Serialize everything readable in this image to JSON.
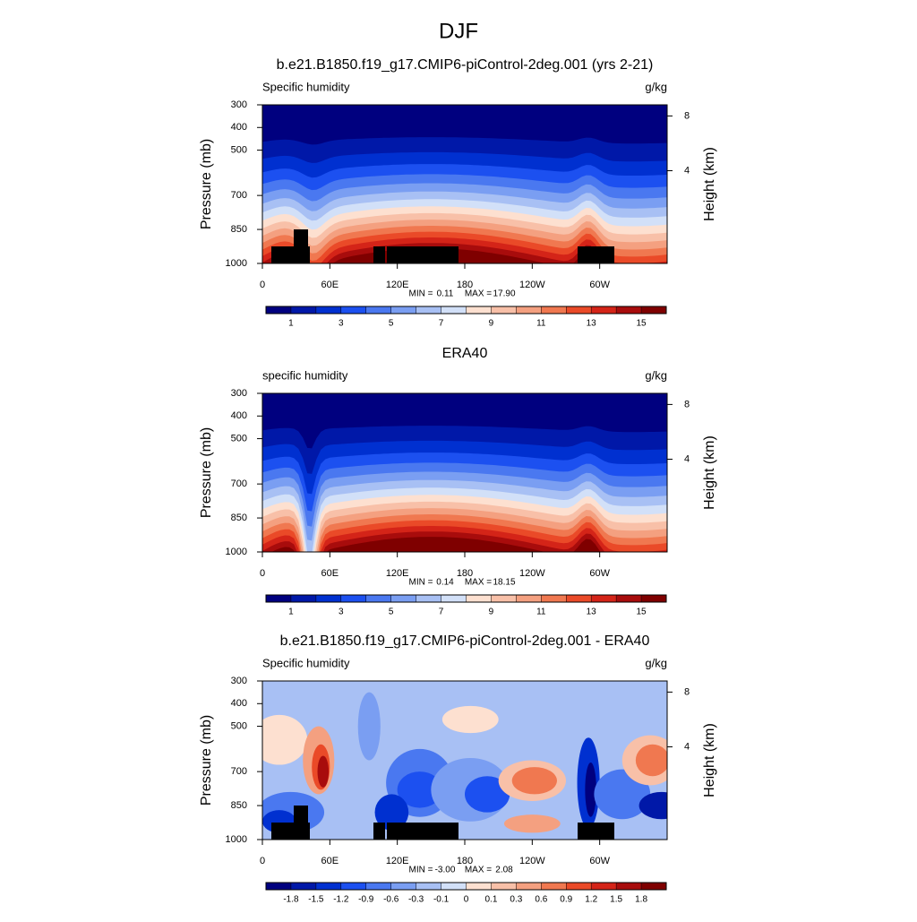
{
  "title": "DJF",
  "chart_data": [
    {
      "type": "contour",
      "title": "b.e21.B1850.f19_g17.CMIP6-piControl-2deg.001 (yrs 2-21)",
      "subtitle_left": "Specific humidity",
      "subtitle_right": "g/kg",
      "ylabel": "Pressure (mb)",
      "y2label": "Height (km)",
      "xlim": [
        0,
        360
      ],
      "xticks": [
        0,
        {
          "value": 60,
          "label": "60E"
        },
        {
          "value": 120,
          "label": "120E"
        },
        180,
        {
          "value": 240,
          "label": "120W"
        },
        {
          "value": 300,
          "label": "60W"
        }
      ],
      "ylim": [
        1000,
        300
      ],
      "yticks": [
        300,
        400,
        500,
        700,
        850,
        1000
      ],
      "y2ticks": [
        8,
        4
      ],
      "stats": [
        {
          "name": "MIN =",
          "value": 0.11,
          "label": "0.11"
        },
        {
          "name": "MAX =",
          "value": 17.9,
          "label": "17.90"
        }
      ],
      "colorbar": {
        "colors": [
          "#00007f",
          "#0018a8",
          "#0030d0",
          "#1c50f0",
          "#4a78f0",
          "#7a9ef2",
          "#a8c0f4",
          "#d2e0f8",
          "#fde0d0",
          "#f8c0a8",
          "#f4a080",
          "#f07850",
          "#ea4a28",
          "#d42418",
          "#a80c0c",
          "#7f0000"
        ],
        "levels": [
          1,
          2,
          3,
          4,
          5,
          6,
          7,
          8,
          9,
          10,
          11,
          12,
          13,
          14,
          15
        ],
        "label_step": 2
      }
    },
    {
      "type": "contour",
      "title": "ERA40",
      "subtitle_left": "specific humidity",
      "subtitle_right": "g/kg",
      "ylabel": "Pressure (mb)",
      "y2label": "Height (km)",
      "xlim": [
        0,
        360
      ],
      "xticks": [
        0,
        {
          "value": 60,
          "label": "60E"
        },
        {
          "value": 120,
          "label": "120E"
        },
        180,
        {
          "value": 240,
          "label": "120W"
        },
        {
          "value": 300,
          "label": "60W"
        }
      ],
      "ylim": [
        1000,
        300
      ],
      "yticks": [
        300,
        400,
        500,
        700,
        850,
        1000
      ],
      "y2ticks": [
        8,
        4
      ],
      "stats": [
        {
          "name": "MIN =",
          "value": 0.14,
          "label": "0.14"
        },
        {
          "name": "MAX =",
          "value": 18.15,
          "label": "18.15"
        }
      ],
      "colorbar": {
        "colors": [
          "#00007f",
          "#0018a8",
          "#0030d0",
          "#1c50f0",
          "#4a78f0",
          "#7a9ef2",
          "#a8c0f4",
          "#d2e0f8",
          "#fde0d0",
          "#f8c0a8",
          "#f4a080",
          "#f07850",
          "#ea4a28",
          "#d42418",
          "#a80c0c",
          "#7f0000"
        ],
        "levels": [
          1,
          2,
          3,
          4,
          5,
          6,
          7,
          8,
          9,
          10,
          11,
          12,
          13,
          14,
          15
        ],
        "label_step": 2
      }
    },
    {
      "type": "contour",
      "title": "b.e21.B1850.f19_g17.CMIP6-piControl-2deg.001 - ERA40",
      "subtitle_left": "Specific humidity",
      "subtitle_right": "g/kg",
      "ylabel": "Pressure (mb)",
      "y2label": "Height (km)",
      "xlim": [
        0,
        360
      ],
      "xticks": [
        0,
        {
          "value": 60,
          "label": "60E"
        },
        {
          "value": 120,
          "label": "120E"
        },
        180,
        {
          "value": 240,
          "label": "120W"
        },
        {
          "value": 300,
          "label": "60W"
        }
      ],
      "ylim": [
        1000,
        300
      ],
      "yticks": [
        300,
        400,
        500,
        700,
        850,
        1000
      ],
      "y2ticks": [
        8,
        4
      ],
      "stats": [
        {
          "name": "MIN =",
          "value": -3.0,
          "label": "-3.00"
        },
        {
          "name": "MAX =",
          "value": 2.08,
          "label": "2.08"
        }
      ],
      "colorbar": {
        "colors": [
          "#00007f",
          "#0018a8",
          "#0030d0",
          "#1c50f0",
          "#4a78f0",
          "#7a9ef2",
          "#a8c0f4",
          "#d2e0f8",
          "#fde0d0",
          "#f8c0a8",
          "#f4a080",
          "#f07850",
          "#ea4a28",
          "#d42418",
          "#a80c0c",
          "#7f0000"
        ],
        "levels": [
          -1.8,
          -1.5,
          -1.2,
          -0.9,
          -0.6,
          -0.3,
          -0.1,
          0,
          0.1,
          0.3,
          0.6,
          0.9,
          1.2,
          1.5,
          1.8
        ],
        "label_step": 1
      }
    }
  ]
}
